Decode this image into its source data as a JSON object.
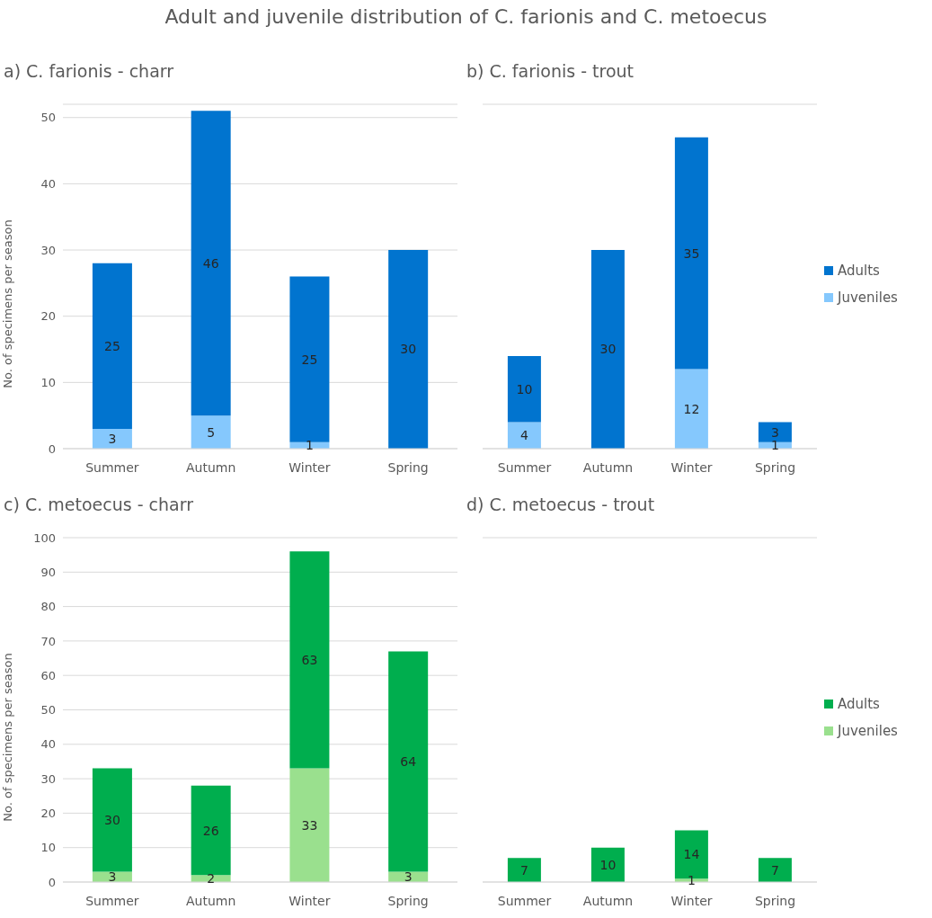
{
  "chart_data": [
    {
      "type": "bar",
      "title": "a) C. farionis - charr",
      "annotations": [
        "Adult and juvenile distribution of C. farionis and C. metoecus"
      ],
      "ylabel": "No. of specimens per season",
      "categories": [
        "Summer",
        "Autumn",
        "Winter",
        "Spring"
      ],
      "stacked": true,
      "series": [
        {
          "color": "#85c8fd",
          "values": [
            3,
            5,
            1,
            0
          ],
          "value_labels": [
            "3",
            "5",
            "1",
            null
          ]
        },
        {
          "color": "#0174cf",
          "values": [
            25,
            46,
            25,
            30
          ],
          "value_labels": [
            "25",
            "46",
            "25",
            "30"
          ]
        }
      ],
      "ylim": [
        0,
        52
      ],
      "yticks": [
        0,
        10,
        20,
        30,
        40,
        50
      ],
      "grid": "y",
      "legend": false
    },
    {
      "type": "bar",
      "title": "b) C. farionis - trout",
      "categories": [
        "Summer",
        "Autumn",
        "Winter",
        "Spring"
      ],
      "stacked": true,
      "series": [
        {
          "name": "Juveniles",
          "color": "#85c8fd",
          "values": [
            4,
            0,
            12,
            1
          ],
          "value_labels": [
            "4",
            null,
            "12",
            "1"
          ]
        },
        {
          "name": "Adults",
          "color": "#0174cf",
          "values": [
            10,
            30,
            35,
            3
          ],
          "value_labels": [
            "10",
            "30",
            "35",
            "3"
          ]
        }
      ],
      "ylim": [
        0,
        52
      ],
      "yticks": [
        0,
        10,
        20,
        30,
        40,
        50
      ],
      "tick_labels": "x",
      "grid": "y",
      "legend": "right"
    },
    {
      "type": "bar",
      "title": "c) C. metoecus - charr",
      "ylabel": "No. of specimens per season",
      "categories": [
        "Summer",
        "Autumn",
        "Winter",
        "Spring"
      ],
      "stacked": true,
      "series": [
        {
          "color": "#9ae08e",
          "values": [
            3,
            2,
            33,
            3
          ],
          "value_labels": [
            "3",
            "2",
            "33",
            "3"
          ]
        },
        {
          "color": "#00ae4e",
          "values": [
            30,
            26,
            63,
            64
          ],
          "value_labels": [
            "30",
            "26",
            "63",
            "64"
          ]
        }
      ],
      "ylim": [
        0,
        100
      ],
      "yticks": [
        0,
        10,
        20,
        30,
        40,
        50,
        60,
        70,
        80,
        90,
        100
      ],
      "grid": "y",
      "legend": false
    },
    {
      "type": "bar",
      "title": "d) C. metoecus - trout",
      "categories": [
        "Summer",
        "Autumn",
        "Winter",
        "Spring"
      ],
      "stacked": true,
      "series": [
        {
          "name": "Juveniles",
          "color": "#9ae08e",
          "values": [
            0,
            0,
            1,
            0
          ],
          "value_labels": [
            null,
            null,
            "1",
            null
          ]
        },
        {
          "name": "Adults",
          "color": "#00ae4e",
          "values": [
            7,
            10,
            14,
            7
          ],
          "value_labels": [
            "7",
            "10",
            "14",
            "7"
          ]
        }
      ],
      "ylim": [
        0,
        100
      ],
      "yticks": [
        0,
        10,
        20,
        30,
        40,
        50,
        60,
        70,
        80,
        90,
        100
      ],
      "tick_labels": "x",
      "grid": "y",
      "legend": "right"
    }
  ]
}
